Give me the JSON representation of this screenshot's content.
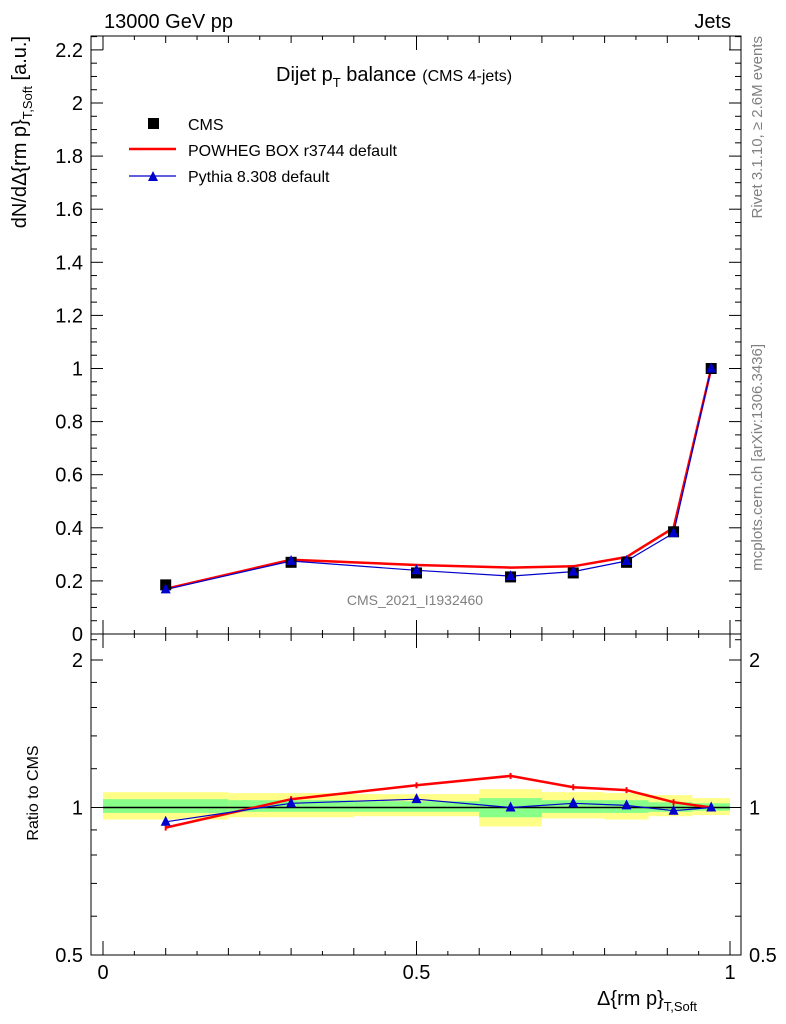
{
  "header": {
    "energy": "13000 GeV pp",
    "category": "Jets"
  },
  "side_labels": {
    "rivet": "Rivet 3.1.10, ≥ 2.6M events",
    "mcplots": "mcplots.cern.ch [arXiv:1306.3436]"
  },
  "chart_data": [
    {
      "type": "line",
      "title_main": "Dijet p",
      "title_sub": "T",
      "title_rest": " balance",
      "title_note": "(CMS 4-jets)",
      "watermark": "CMS_2021_I1932460",
      "xlabel": "Δ{rm p}",
      "xlabel_sub": "T,Soft",
      "ylabel": "dN/dΔ{rm p}",
      "ylabel_sub": "T,Soft",
      "ylabel_unit": " [a.u.]",
      "xlim": [
        -0.01,
        1.01
      ],
      "ylim": [
        0,
        2.26
      ],
      "yticks": [
        "0",
        "0.2",
        "0.4",
        "0.6",
        "0.8",
        "1",
        "1.2",
        "1.4",
        "1.6",
        "1.8",
        "2",
        "2.2"
      ],
      "x": [
        0.1,
        0.3,
        0.5,
        0.65,
        0.75,
        0.835,
        0.91,
        0.97
      ],
      "series": [
        {
          "name": "CMS",
          "style": "markers",
          "color": "#000000",
          "values": [
            0.185,
            0.27,
            0.23,
            0.215,
            0.23,
            0.27,
            0.385,
            1.0
          ]
        },
        {
          "name": "POWHEG BOX r3744 default",
          "style": "line",
          "color": "#ff0000",
          "values": [
            0.17,
            0.28,
            0.26,
            0.25,
            0.255,
            0.29,
            0.4,
            1.0
          ]
        },
        {
          "name": "Pythia 8.308 default",
          "style": "line-triangle",
          "color": "#0000cc",
          "values": [
            0.168,
            0.275,
            0.24,
            0.218,
            0.235,
            0.275,
            0.38,
            1.0
          ]
        }
      ]
    },
    {
      "type": "line",
      "ylabel": "Ratio to CMS",
      "xticks": [
        "0",
        "0.5",
        "1"
      ],
      "yticks": [
        "0.5",
        "1",
        "2"
      ],
      "ylim": [
        0.5,
        2.26
      ],
      "bands": {
        "yellow": "#ffff88",
        "green": "#88ff88",
        "edges": [
          0.0,
          0.2,
          0.4,
          0.6,
          0.7,
          0.8,
          0.87,
          0.94,
          1.0
        ],
        "outer": [
          [
            0.945,
            1.075
          ],
          [
            0.955,
            1.07
          ],
          [
            0.96,
            1.065
          ],
          [
            0.915,
            1.09
          ],
          [
            0.95,
            1.075
          ],
          [
            0.945,
            1.07
          ],
          [
            0.96,
            1.06
          ],
          [
            0.965,
            1.045
          ]
        ],
        "inner": [
          [
            0.975,
            1.04
          ],
          [
            0.98,
            1.035
          ],
          [
            0.98,
            1.03
          ],
          [
            0.955,
            1.045
          ],
          [
            0.975,
            1.035
          ],
          [
            0.975,
            1.035
          ],
          [
            0.98,
            1.025
          ],
          [
            0.985,
            1.02
          ]
        ]
      },
      "x": [
        0.1,
        0.3,
        0.5,
        0.65,
        0.75,
        0.835,
        0.91,
        0.97
      ],
      "series": [
        {
          "name": "POWHEG BOX r3744 default",
          "color": "#ff0000",
          "values": [
            0.91,
            1.04,
            1.11,
            1.16,
            1.1,
            1.085,
            1.025,
            1.0
          ]
        },
        {
          "name": "Pythia 8.308 default",
          "color": "#0000cc",
          "values": [
            0.935,
            1.02,
            1.04,
            1.0,
            1.02,
            1.01,
            0.985,
            1.0
          ]
        }
      ]
    }
  ]
}
